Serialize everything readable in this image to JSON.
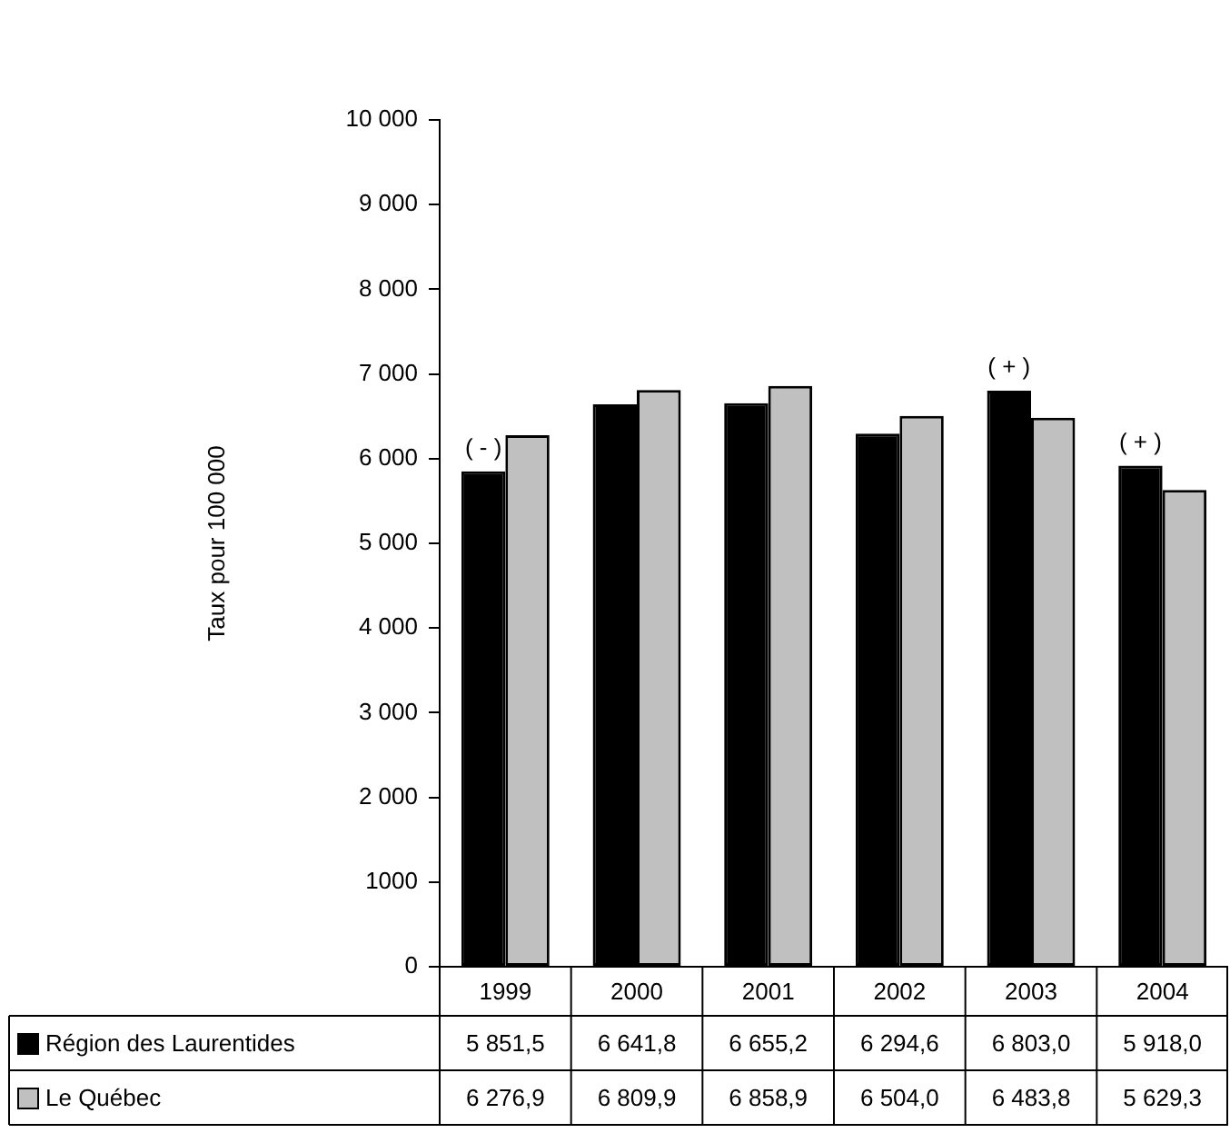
{
  "chart_data": {
    "type": "bar",
    "ylabel": "Taux pour 100 000",
    "categories": [
      "1999",
      "2000",
      "2001",
      "2002",
      "2003",
      "2004"
    ],
    "series": [
      {
        "name": "Région des Laurentides",
        "color": "#000000",
        "values": [
          5851.5,
          6641.8,
          6655.2,
          6294.6,
          6803.0,
          5918.0
        ],
        "value_labels": [
          "5 851,5",
          "6 641,8",
          "6 655,2",
          "6 294,6",
          "6 803,0",
          "5 918,0"
        ]
      },
      {
        "name": "Le Québec",
        "color": "#c0c0c0",
        "values": [
          6276.9,
          6809.9,
          6858.9,
          6504.0,
          6483.8,
          5629.3
        ],
        "value_labels": [
          "6 276,9",
          "6 809,9",
          "6 858,9",
          "6 504,0",
          "6 483,8",
          "5 629,3"
        ]
      }
    ],
    "ylim": [
      0,
      10000
    ],
    "yticks": [
      0,
      {
        "value": 1000,
        "label": "1000"
      },
      {
        "value": 2000,
        "label": "2 000"
      },
      {
        "value": 3000,
        "label": "3 000"
      },
      {
        "value": 4000,
        "label": "4 000"
      },
      {
        "value": 5000,
        "label": "5 000"
      },
      {
        "value": 6000,
        "label": "6 000"
      },
      {
        "value": 7000,
        "label": "7 000"
      },
      {
        "value": 8000,
        "label": "8 000"
      },
      {
        "value": 9000,
        "label": "9 000"
      },
      {
        "value": 10000,
        "label": "10 000"
      }
    ],
    "grid": false,
    "legend": "bottom",
    "annotations": [
      {
        "text": "( - )",
        "x": "1999",
        "y": 5851.5
      },
      {
        "text": "( + )",
        "x": "2003",
        "y": 6803.0
      },
      {
        "text": "( + )",
        "x": "2004",
        "y": 5918.0
      }
    ]
  }
}
